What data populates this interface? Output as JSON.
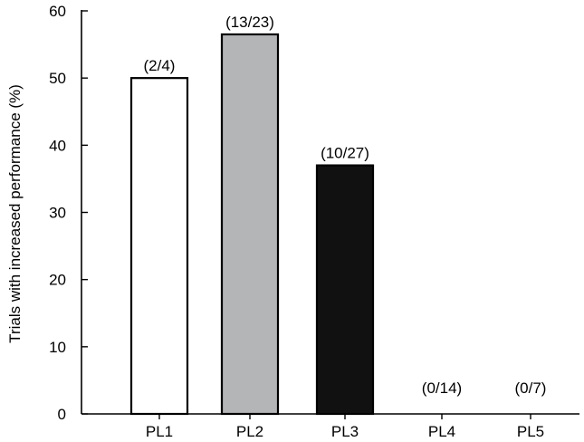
{
  "chart_data": {
    "type": "bar",
    "title": "",
    "xlabel": "",
    "ylabel": "Trials with increased performance (%)",
    "categories": [
      "PL1",
      "PL2",
      "PL3",
      "PL4",
      "PL5"
    ],
    "values": [
      50.0,
      56.5,
      37.0,
      0,
      0
    ],
    "data_labels": [
      "(2/4)",
      "(13/23)",
      "(10/27)",
      "(0/14)",
      "(0/7)"
    ],
    "bar_colors": [
      "#ffffff",
      "#b3b5b7",
      "#111111",
      "#ffffff",
      "#ffffff"
    ],
    "ylim": [
      0,
      60
    ],
    "yticks": [
      0,
      10,
      20,
      30,
      40,
      50,
      60
    ],
    "grid": false,
    "legend": "none"
  }
}
